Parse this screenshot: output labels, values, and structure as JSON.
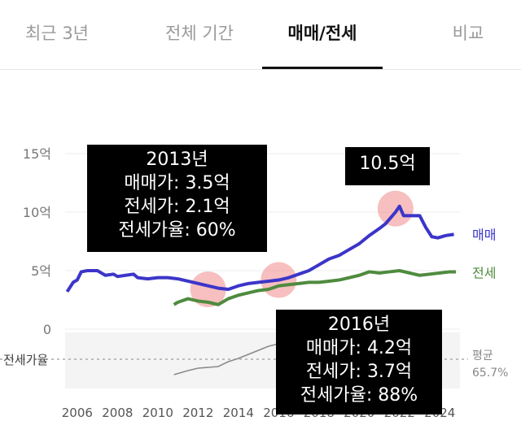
{
  "tabs": [
    {
      "label": "최근 3년",
      "active": false
    },
    {
      "label": "전체 기간",
      "active": false
    },
    {
      "label": "매매/전세",
      "active": true
    },
    {
      "label": "비교",
      "active": false
    }
  ],
  "chart_data": {
    "type": "line",
    "y_ticks": [
      "15억",
      "10억",
      "5억",
      "0"
    ],
    "x_ticks": [
      "2006",
      "2008",
      "2010",
      "2012",
      "2014",
      "2016",
      "2018",
      "2020",
      "2022",
      "2024"
    ],
    "ylim": [
      0,
      15
    ],
    "xlim": [
      2005.4,
      2025.0
    ],
    "series": [
      {
        "name": "매매",
        "color": "#3b35c9",
        "x": [
          2005.5,
          2005.8,
          2006.0,
          2006.2,
          2006.5,
          2007.0,
          2007.4,
          2007.8,
          2008.0,
          2008.4,
          2008.8,
          2009.0,
          2009.5,
          2010.0,
          2010.5,
          2011.0,
          2011.5,
          2012.0,
          2012.5,
          2013.0,
          2013.5,
          2014.0,
          2014.5,
          2015.0,
          2015.5,
          2016.0,
          2016.5,
          2017.0,
          2017.5,
          2018.0,
          2018.5,
          2019.0,
          2019.5,
          2020.0,
          2020.5,
          2021.0,
          2021.3,
          2021.6,
          2021.8,
          2022.0,
          2022.2,
          2022.5,
          2023.0,
          2023.3,
          2023.6,
          2023.9,
          2024.3,
          2024.7
        ],
        "values": [
          3.2,
          4.0,
          4.2,
          4.9,
          5.0,
          5.0,
          4.6,
          4.7,
          4.5,
          4.6,
          4.7,
          4.4,
          4.3,
          4.4,
          4.4,
          4.3,
          4.1,
          3.9,
          3.7,
          3.5,
          3.4,
          3.7,
          3.9,
          4.0,
          4.1,
          4.2,
          4.4,
          4.7,
          5.0,
          5.5,
          6.0,
          6.3,
          6.8,
          7.3,
          8.0,
          8.6,
          9.0,
          9.6,
          10.0,
          10.5,
          9.7,
          9.7,
          9.7,
          8.7,
          7.9,
          7.8,
          8.0,
          8.1
        ]
      },
      {
        "name": "전세",
        "color": "#4e8b3e",
        "x": [
          2010.8,
          2011.0,
          2011.5,
          2012.0,
          2012.5,
          2013.0,
          2013.5,
          2014.0,
          2014.5,
          2015.0,
          2015.5,
          2016.0,
          2016.5,
          2017.0,
          2017.5,
          2018.0,
          2018.5,
          2019.0,
          2019.5,
          2020.0,
          2020.5,
          2021.0,
          2021.5,
          2022.0,
          2022.5,
          2023.0,
          2023.5,
          2024.0,
          2024.5,
          2024.8
        ],
        "values": [
          2.1,
          2.3,
          2.6,
          2.4,
          2.3,
          2.1,
          2.6,
          2.9,
          3.1,
          3.3,
          3.4,
          3.7,
          3.8,
          3.9,
          4.0,
          4.0,
          4.1,
          4.2,
          4.4,
          4.6,
          4.9,
          4.8,
          4.9,
          5.0,
          4.8,
          4.6,
          4.7,
          4.8,
          4.9,
          4.9
        ]
      }
    ],
    "ratio": {
      "label": "전세가율",
      "average_label": "평균",
      "average_value": "65.7%",
      "x": [
        2010.8,
        2011.5,
        2012.0,
        2012.5,
        2013.0,
        2013.5,
        2014.0,
        2014.5,
        2015.0,
        2015.5,
        2016.0,
        2016.5,
        2017.0
      ],
      "values": [
        0.5,
        0.55,
        0.58,
        0.59,
        0.6,
        0.66,
        0.7,
        0.75,
        0.8,
        0.85,
        0.88,
        0.88,
        0.86
      ]
    },
    "legend_labels": [
      "매매",
      "전세"
    ],
    "highlights": [
      {
        "x": 2012.5,
        "y": 3.4,
        "callout": [
          "2013년",
          "매매가: 3.5억",
          "전세가: 2.1억",
          "전세가율: 60%"
        ]
      },
      {
        "x": 2016.0,
        "y": 4.2,
        "callout": [
          "2016년",
          "매매가: 4.2억",
          "전세가: 3.7억",
          "전세가율: 88%"
        ]
      },
      {
        "x": 2021.8,
        "y": 10.3,
        "callout": [
          "10.5억"
        ]
      }
    ]
  }
}
